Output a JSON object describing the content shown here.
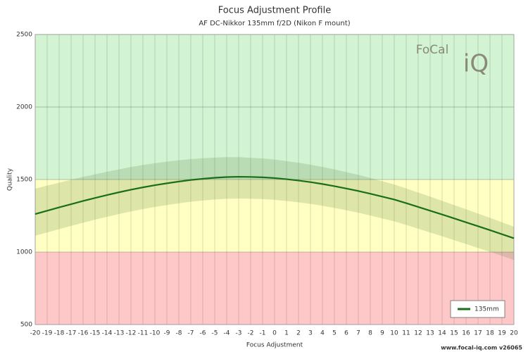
{
  "chart_data": {
    "type": "line",
    "title": "Focus Adjustment Profile",
    "subtitle": "AF DC-Nikkor 135mm f/2D (Nikon F mount)",
    "x_label": "Focus Adjustment",
    "y_label": "Quality",
    "footer": "www.focal-iq.com  v26065",
    "logo": [
      "FoCal",
      "iQ"
    ],
    "x": [
      -20,
      -19,
      -18,
      -17,
      -16,
      -15,
      -14,
      -13,
      -12,
      -11,
      -10,
      -9,
      -8,
      -7,
      -6,
      -5,
      -4,
      -3,
      -2,
      -1,
      0,
      1,
      2,
      3,
      4,
      5,
      6,
      7,
      8,
      9,
      10,
      11,
      12,
      13,
      14,
      15,
      16,
      17,
      18,
      19,
      20
    ],
    "series": [
      {
        "name": "135mm",
        "color": "#1a6e1a",
        "values": [
          1262,
          1285,
          1308,
          1330,
          1352,
          1373,
          1393,
          1412,
          1430,
          1446,
          1461,
          1474,
          1486,
          1497,
          1505,
          1512,
          1517,
          1519,
          1518,
          1515,
          1510,
          1502,
          1493,
          1482,
          1469,
          1454,
          1438,
          1421,
          1402,
          1382,
          1362,
          1337,
          1311,
          1285,
          1259,
          1232,
          1205,
          1178,
          1151,
          1123,
          1095
        ]
      }
    ],
    "band": {
      "color": "rgba(70,110,50,0.18)",
      "upper": [
        1437,
        1458,
        1478,
        1498,
        1518,
        1536,
        1554,
        1570,
        1586,
        1600,
        1612,
        1623,
        1633,
        1641,
        1647,
        1651,
        1654,
        1654,
        1650,
        1645,
        1638,
        1627,
        1616,
        1602,
        1587,
        1570,
        1551,
        1532,
        1511,
        1488,
        1466,
        1438,
        1410,
        1382,
        1353,
        1324,
        1295,
        1265,
        1236,
        1205,
        1175
      ],
      "lower": [
        1112,
        1135,
        1158,
        1180,
        1202,
        1223,
        1243,
        1262,
        1280,
        1296,
        1311,
        1324,
        1336,
        1347,
        1355,
        1362,
        1367,
        1369,
        1368,
        1365,
        1360,
        1352,
        1343,
        1332,
        1319,
        1304,
        1288,
        1271,
        1252,
        1232,
        1212,
        1187,
        1161,
        1135,
        1109,
        1082,
        1055,
        1028,
        1001,
        973,
        945
      ]
    },
    "zones": [
      {
        "from": 500,
        "to": 1000,
        "color": "#ffc8c8"
      },
      {
        "from": 1000,
        "to": 1500,
        "color": "#ffffc4"
      },
      {
        "from": 1500,
        "to": 2500,
        "color": "#d2f4d2"
      }
    ],
    "xlim": [
      -20,
      20
    ],
    "xticks": [
      -20,
      -19,
      -18,
      -17,
      -16,
      -15,
      -14,
      -13,
      -12,
      -11,
      -10,
      -9,
      -8,
      -7,
      -6,
      -5,
      -4,
      -3,
      -2,
      -1,
      0,
      1,
      2,
      3,
      4,
      5,
      6,
      7,
      8,
      9,
      10,
      11,
      12,
      13,
      14,
      15,
      16,
      17,
      18,
      19,
      20
    ],
    "ylim": [
      500,
      2500
    ],
    "yticks": [
      500,
      1000,
      1500,
      2000,
      2500
    ],
    "grid": true,
    "legend": "lower right"
  }
}
